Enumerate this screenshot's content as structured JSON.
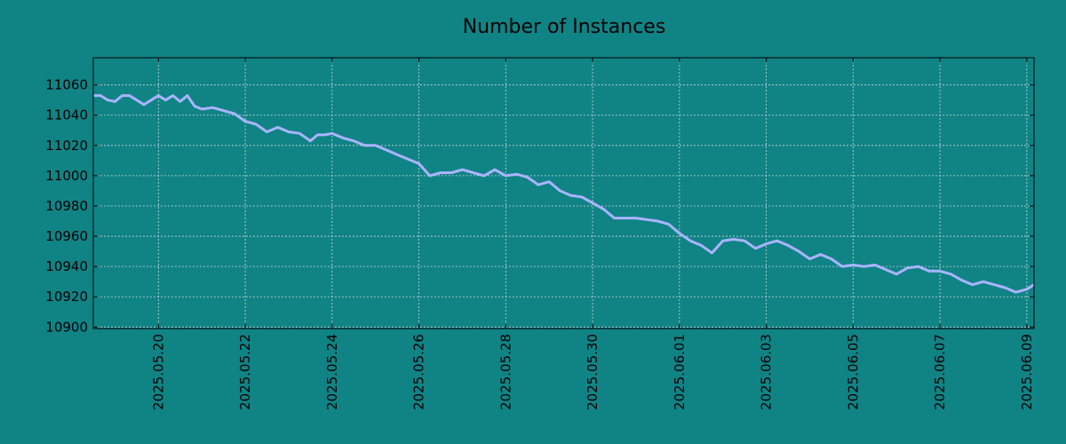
{
  "chart_data": {
    "type": "line",
    "title": "Number of Instances",
    "xlabel": "",
    "ylabel": "",
    "xlim": [
      "2025-05-18T12:00",
      "2025-06-09T04:00"
    ],
    "ylim": [
      10899,
      11078
    ],
    "y_ticks": [
      10900,
      10920,
      10940,
      10960,
      10980,
      11000,
      11020,
      11040,
      11060
    ],
    "x_ticks": [
      "2025.05.20",
      "2025.05.22",
      "2025.05.24",
      "2025.05.26",
      "2025.05.28",
      "2025.05.30",
      "2025.06.01",
      "2025.06.03",
      "2025.06.05",
      "2025.06.07",
      "2025.06.09"
    ],
    "grid": true,
    "colors": {
      "background": "#108385",
      "line": "#aab4ff",
      "grid": "#cfd8d8"
    },
    "series": [
      {
        "x": [
          "2025-05-18T12:00",
          "2025-05-18T16:00",
          "2025-05-18T20:00",
          "2025-05-19T00:00",
          "2025-05-19T04:00",
          "2025-05-19T08:00",
          "2025-05-19T12:00",
          "2025-05-19T16:00",
          "2025-05-19T20:00",
          "2025-05-20T00:00",
          "2025-05-20T04:00",
          "2025-05-20T08:00",
          "2025-05-20T12:00",
          "2025-05-20T16:00",
          "2025-05-20T20:00",
          "2025-05-21T00:00",
          "2025-05-21T06:00",
          "2025-05-21T12:00",
          "2025-05-21T18:00",
          "2025-05-22T00:00",
          "2025-05-22T06:00",
          "2025-05-22T12:00",
          "2025-05-22T18:00",
          "2025-05-23T00:00",
          "2025-05-23T06:00",
          "2025-05-23T12:00",
          "2025-05-23T16:00",
          "2025-05-23T20:00",
          "2025-05-24T00:00",
          "2025-05-24T06:00",
          "2025-05-24T12:00",
          "2025-05-24T18:00",
          "2025-05-25T00:00",
          "2025-05-25T06:00",
          "2025-05-25T12:00",
          "2025-05-25T18:00",
          "2025-05-26T00:00",
          "2025-05-26T06:00",
          "2025-05-26T12:00",
          "2025-05-26T18:00",
          "2025-05-27T00:00",
          "2025-05-27T06:00",
          "2025-05-27T12:00",
          "2025-05-27T18:00",
          "2025-05-28T00:00",
          "2025-05-28T06:00",
          "2025-05-28T12:00",
          "2025-05-28T18:00",
          "2025-05-29T00:00",
          "2025-05-29T06:00",
          "2025-05-29T12:00",
          "2025-05-29T18:00",
          "2025-05-30T00:00",
          "2025-05-30T06:00",
          "2025-05-30T12:00",
          "2025-05-30T18:00",
          "2025-05-31T00:00",
          "2025-05-31T06:00",
          "2025-05-31T12:00",
          "2025-05-31T18:00",
          "2025-06-01T00:00",
          "2025-06-01T06:00",
          "2025-06-01T12:00",
          "2025-06-01T18:00",
          "2025-06-02T00:00",
          "2025-06-02T06:00",
          "2025-06-02T12:00",
          "2025-06-02T18:00",
          "2025-06-03T00:00",
          "2025-06-03T06:00",
          "2025-06-03T12:00",
          "2025-06-03T18:00",
          "2025-06-04T00:00",
          "2025-06-04T06:00",
          "2025-06-04T12:00",
          "2025-06-04T18:00",
          "2025-06-05T00:00",
          "2025-06-05T06:00",
          "2025-06-05T12:00",
          "2025-06-05T18:00",
          "2025-06-06T00:00",
          "2025-06-06T06:00",
          "2025-06-06T12:00",
          "2025-06-06T18:00",
          "2025-06-07T00:00",
          "2025-06-07T06:00",
          "2025-06-07T12:00",
          "2025-06-07T18:00",
          "2025-06-08T00:00",
          "2025-06-08T06:00",
          "2025-06-08T12:00",
          "2025-06-08T18:00",
          "2025-06-09T00:00",
          "2025-06-09T04:00"
        ],
        "y": [
          11053,
          11053,
          11050,
          11049,
          11053,
          11053,
          11050,
          11047,
          11050,
          11053,
          11050,
          11053,
          11049,
          11053,
          11046,
          11044,
          11045,
          11043,
          11041,
          11036,
          11034,
          11029,
          11032,
          11029,
          11028,
          11023,
          11027,
          11027,
          11028,
          11025,
          11023,
          11020,
          11020,
          11017,
          11014,
          11011,
          11008,
          11000,
          11002,
          11002,
          11004,
          11002,
          11000,
          11004,
          11000,
          11001,
          10999,
          10994,
          10996,
          10990,
          10987,
          10986,
          10982,
          10978,
          10972,
          10972,
          10972,
          10971,
          10970,
          10968,
          10962,
          10957,
          10954,
          10949,
          10957,
          10958,
          10957,
          10952,
          10955,
          10957,
          10954,
          10950,
          10945,
          10948,
          10945,
          10940,
          10941,
          10940,
          10941,
          10938,
          10935,
          10939,
          10940,
          10937,
          10937,
          10935,
          10931,
          10928,
          10930,
          10928,
          10926,
          10923,
          10925,
          10928
        ]
      }
    ]
  }
}
